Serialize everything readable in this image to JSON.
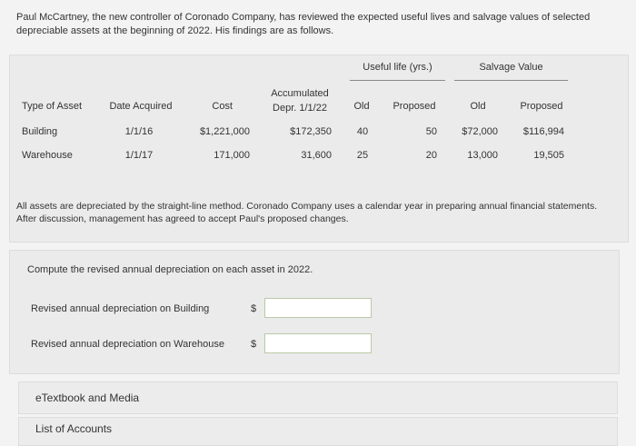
{
  "intro": "Paul McCartney, the new controller of Coronado Company, has reviewed the expected useful lives and salvage values of selected depreciable assets at the beginning of 2022. His findings are as follows.",
  "table": {
    "group_headers": [
      "Useful life (yrs.)",
      "Salvage Value"
    ],
    "columns": [
      "Type of Asset",
      "Date Acquired",
      "Cost",
      "Accumulated Depr. 1/1/22",
      "Old",
      "Proposed",
      "Old",
      "Proposed"
    ],
    "rows": [
      [
        "Building",
        "1/1/16",
        "$1,221,000",
        "$172,350",
        "40",
        "50",
        "$72,000",
        "$116,994"
      ],
      [
        "Warehouse",
        "1/1/17",
        "171,000",
        "31,600",
        "25",
        "20",
        "13,000",
        "19,505"
      ]
    ]
  },
  "note": "All assets are depreciated by the straight-line method. Coronado Company uses a calendar year in preparing annual financial statements. After discussion, management has agreed to accept Paul's proposed changes.",
  "prompt": "Compute the revised annual depreciation on each asset in 2022.",
  "inputs": [
    {
      "label": "Revised annual depreciation on Building",
      "currency": "$"
    },
    {
      "label": "Revised annual depreciation on Warehouse",
      "currency": "$"
    }
  ],
  "links": [
    "eTextbook and Media",
    "List of Accounts"
  ]
}
